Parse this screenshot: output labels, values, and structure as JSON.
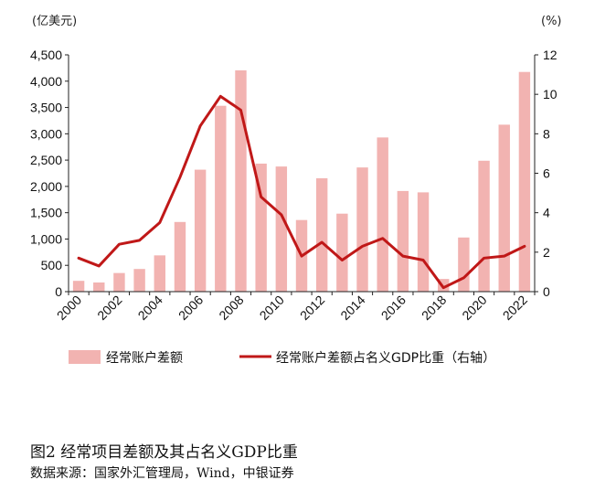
{
  "caption": {
    "title": "图2   经常项目差额及其占名义GDP比重",
    "source": "数据来源：国家外汇管理局，Wind，中银证券"
  },
  "chart_data": {
    "type": "bar",
    "left_axis_unit": "(亿美元)",
    "right_axis_unit": "(%)",
    "categories": [
      "2000",
      "2001",
      "2002",
      "2003",
      "2004",
      "2005",
      "2006",
      "2007",
      "2008",
      "2009",
      "2010",
      "2011",
      "2012",
      "2013",
      "2014",
      "2015",
      "2016",
      "2017",
      "2018",
      "2019",
      "2020",
      "2021",
      "2022"
    ],
    "x_tick_labels": [
      "2000",
      "2002",
      "2004",
      "2006",
      "2008",
      "2010",
      "2012",
      "2014",
      "2016",
      "2018",
      "2020",
      "2022"
    ],
    "y_left_ticks": [
      "0",
      "500",
      "1,000",
      "1,500",
      "2,000",
      "2,500",
      "3,000",
      "3,500",
      "4,000",
      "4,500"
    ],
    "y_right_ticks": [
      "0",
      "2",
      "4",
      "6",
      "8",
      "10",
      "12"
    ],
    "ylim_left": [
      0,
      4500
    ],
    "ylim_right": [
      0,
      12
    ],
    "series": [
      {
        "name": "经常账户差额",
        "type": "bar",
        "axis": "left",
        "color": "#f2b3b1",
        "values": [
          205,
          174,
          354,
          431,
          689,
          1324,
          2318,
          3532,
          4206,
          2433,
          2378,
          1361,
          2154,
          1482,
          2360,
          2930,
          1913,
          1887,
          241,
          1029,
          2488,
          3173,
          4175
        ]
      },
      {
        "name": "经常账户差额占名义GDP比重（右轴）",
        "type": "line",
        "axis": "right",
        "color": "#c01818",
        "values": [
          1.7,
          1.3,
          2.4,
          2.6,
          3.5,
          5.8,
          8.4,
          9.9,
          9.2,
          4.8,
          3.9,
          1.8,
          2.5,
          1.6,
          2.3,
          2.7,
          1.8,
          1.6,
          0.2,
          0.7,
          1.7,
          1.8,
          2.3
        ]
      }
    ],
    "grid": false,
    "legend_position": "bottom"
  }
}
